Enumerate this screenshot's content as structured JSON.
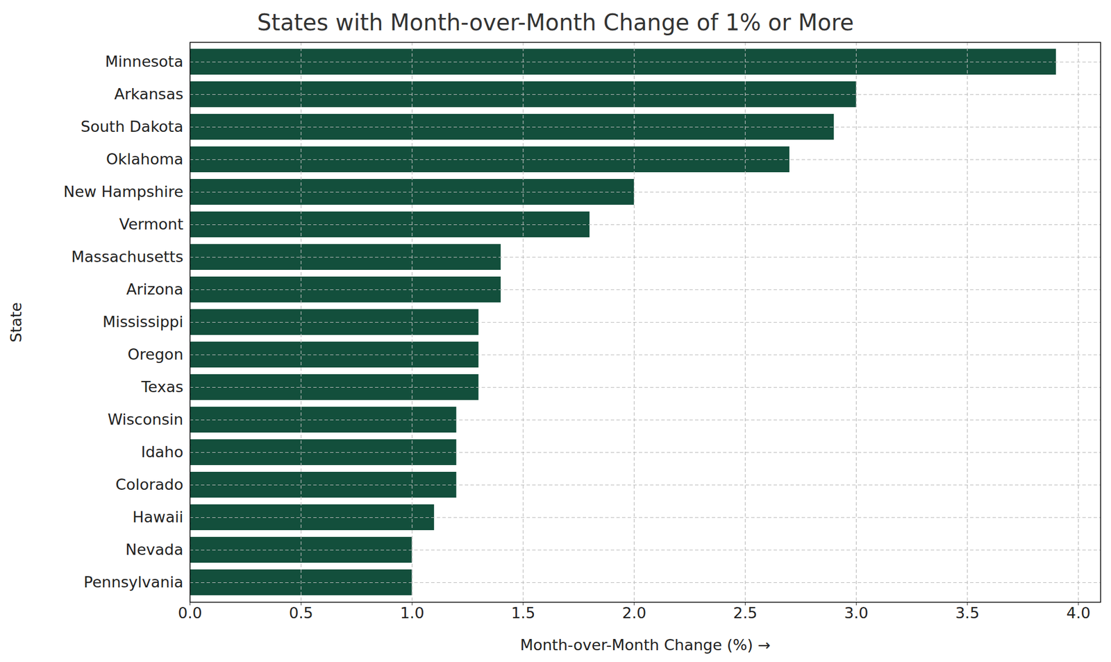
{
  "chart_data": {
    "type": "bar",
    "orientation": "horizontal",
    "title": "States with Month-over-Month Change of 1% or More",
    "x_label": "Month-over-Month Change (%)",
    "y_label": "State",
    "categories": [
      "Minnesota",
      "Arkansas",
      "South Dakota",
      "Oklahoma",
      "New Hampshire",
      "Vermont",
      "Massachusetts",
      "Arizona",
      "Mississippi",
      "Oregon",
      "Texas",
      "Wisconsin",
      "Idaho",
      "Colorado",
      "Hawaii",
      "Nevada",
      "Pennsylvania"
    ],
    "values": [
      3.9,
      3.0,
      2.9,
      2.7,
      2.0,
      1.8,
      1.4,
      1.4,
      1.3,
      1.3,
      1.3,
      1.2,
      1.2,
      1.2,
      1.1,
      1.0,
      1.0
    ],
    "color": "#134f3c",
    "xlim": [
      0,
      4.1
    ],
    "xticks": [
      {
        "value": 0,
        "label": "0.0"
      },
      {
        "value": 0.5,
        "label": "0.5"
      },
      {
        "value": 1,
        "label": "1.0"
      },
      {
        "value": 1.5,
        "label": "1.5"
      },
      {
        "value": 2,
        "label": "2.0"
      },
      {
        "value": 2.5,
        "label": "2.5"
      },
      {
        "value": 3,
        "label": "3.0"
      },
      {
        "value": 3.5,
        "label": "3.5"
      },
      {
        "value": 4,
        "label": "4.0"
      }
    ],
    "grid": true
  }
}
